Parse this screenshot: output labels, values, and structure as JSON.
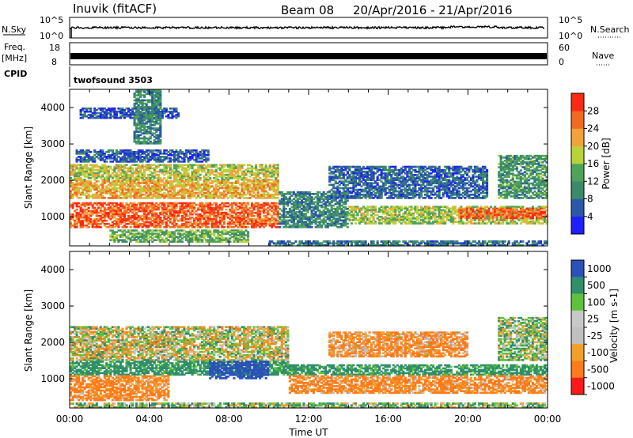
{
  "header": {
    "station": "Inuvik (fitACF)",
    "beam": "Beam 08",
    "dates": "20/Apr/2016 - 21/Apr/2016"
  },
  "strips": {
    "nsky": {
      "label": "N.Sky",
      "right_label": "N.Search",
      "left_ticks": [
        "10^5",
        "10^0"
      ],
      "right_ticks": [
        "10^5",
        "10^0"
      ]
    },
    "freq": {
      "label_top": "Freq.",
      "label_unit": "[MHz]",
      "left_ticks": [
        "18",
        "8"
      ],
      "right_ticks": [
        "60",
        "0"
      ],
      "right_label": "Nave"
    },
    "cpid": {
      "label": "CPID",
      "program": "twofsound 3503"
    }
  },
  "colors": {
    "power": [
      "#1f1fff",
      "#2b57a8",
      "#3a8a6a",
      "#4fa35a",
      "#b8d23a",
      "#f2a23a",
      "#f26a20",
      "#ff2a14"
    ],
    "velocity": [
      "#ff1a1a",
      "#ff7a1a",
      "#f2a02a",
      "#c0c0c0",
      "#c8c8c8",
      "#5ec33a",
      "#2f8f6a",
      "#2a52b8"
    ],
    "frame": "#000000"
  },
  "chart_data": [
    {
      "type": "heatmap",
      "panel": "power",
      "ylabel": "Slant Range [km]",
      "xlim": [
        0,
        24
      ],
      "ylim": [
        200,
        4500
      ],
      "yticks": [
        1000,
        2000,
        3000,
        4000
      ],
      "colorbar": {
        "label": "Power [dB]",
        "range": [
          0,
          32
        ],
        "tick_labels": [
          "4",
          "8",
          "12",
          "16",
          "20",
          "24",
          "28"
        ]
      },
      "regions": [
        {
          "t0": 0.0,
          "t1": 10.5,
          "r0": 2000,
          "r1": 2450,
          "value": 18
        },
        {
          "t0": 0.0,
          "t1": 10.5,
          "r0": 1500,
          "r1": 2000,
          "value": 22
        },
        {
          "t0": 0.0,
          "t1": 10.5,
          "r0": 700,
          "r1": 1400,
          "value": 27
        },
        {
          "t0": 2.0,
          "t1": 9.0,
          "r0": 300,
          "r1": 650,
          "value": 14
        },
        {
          "t0": 0.3,
          "t1": 7.0,
          "r0": 2500,
          "r1": 2850,
          "value": 6
        },
        {
          "t0": 0.5,
          "t1": 5.5,
          "r0": 3700,
          "r1": 4000,
          "value": 5
        },
        {
          "t0": 3.2,
          "t1": 4.6,
          "r0": 3000,
          "r1": 4500,
          "value": 10
        },
        {
          "t0": 10.5,
          "t1": 14.0,
          "r0": 700,
          "r1": 1700,
          "value": 10
        },
        {
          "t0": 13.0,
          "t1": 21.0,
          "r0": 1500,
          "r1": 2400,
          "value": 7
        },
        {
          "t0": 14.0,
          "t1": 24.0,
          "r0": 800,
          "r1": 1300,
          "value": 17
        },
        {
          "t0": 19.5,
          "t1": 24.0,
          "r0": 950,
          "r1": 1250,
          "value": 27
        },
        {
          "t0": 21.5,
          "t1": 24.0,
          "r0": 1500,
          "r1": 2700,
          "value": 12
        },
        {
          "t0": 10.0,
          "t1": 24.0,
          "r0": 200,
          "r1": 350,
          "value": 8
        }
      ]
    },
    {
      "type": "heatmap",
      "panel": "velocity",
      "ylabel": "Slant Range [km]",
      "xlabel": "Time UT",
      "xlim": [
        0,
        24
      ],
      "ylim": [
        200,
        4500
      ],
      "yticks": [
        1000,
        2000,
        3000,
        4000
      ],
      "xtick_labels": [
        "00:00",
        "04:00",
        "08:00",
        "12:00",
        "16:00",
        "20:00",
        "00:00"
      ],
      "colorbar": {
        "label": "Velocity [m s-1]",
        "tick_labels": [
          "1000",
          "500",
          "100",
          "25",
          "-25",
          "-100",
          "-500",
          "-1000"
        ]
      },
      "regions": [
        {
          "t0": 0.0,
          "t1": 11.0,
          "r0": 1900,
          "r1": 2450,
          "value": 0
        },
        {
          "t0": 0.0,
          "t1": 11.0,
          "r0": 1500,
          "r1": 1900,
          "value": 0
        },
        {
          "t0": 0.0,
          "t1": 11.0,
          "r0": 1100,
          "r1": 1500,
          "value": 200
        },
        {
          "t0": 7.0,
          "t1": 10.0,
          "r0": 1000,
          "r1": 1500,
          "value": 800
        },
        {
          "t0": 0.0,
          "t1": 5.0,
          "r0": 400,
          "r1": 1100,
          "value": -150
        },
        {
          "t0": 11.0,
          "t1": 24.0,
          "r0": 1100,
          "r1": 1400,
          "value": 200
        },
        {
          "t0": 11.0,
          "t1": 24.0,
          "r0": 600,
          "r1": 1100,
          "value": -150
        },
        {
          "t0": 13.0,
          "t1": 20.0,
          "r0": 1600,
          "r1": 2300,
          "value": -120
        },
        {
          "t0": 21.5,
          "t1": 24.0,
          "r0": 1500,
          "r1": 2700,
          "value": 50
        },
        {
          "t0": 0.0,
          "t1": 24.0,
          "r0": 200,
          "r1": 350,
          "value": 60
        }
      ]
    }
  ]
}
